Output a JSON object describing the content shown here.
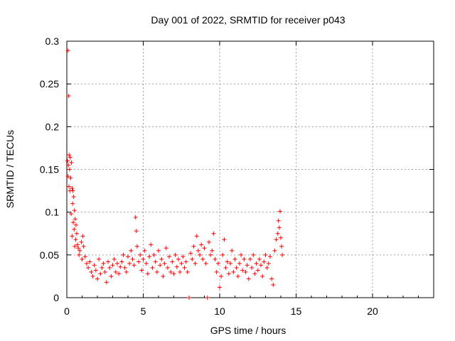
{
  "chart_data": {
    "type": "scatter",
    "title": "Day 001 of 2022, SRMTID for receiver p043",
    "xlabel": "GPS time / hours",
    "ylabel": "SRMTID / TECUs",
    "xlim": [
      0,
      24
    ],
    "ylim": [
      0,
      0.3
    ],
    "xticks": [
      0,
      5,
      10,
      15,
      20
    ],
    "yticks": [
      0,
      0.05,
      0.1,
      0.15,
      0.2,
      0.25,
      0.3
    ],
    "ytick_labels": [
      "0",
      "0.05",
      "0.1",
      "0.15",
      "0.2",
      "0.25",
      "0.3"
    ],
    "grid": true,
    "marker": "+",
    "color": "#ff0000",
    "series": [
      {
        "name": "SRMTID",
        "points": [
          [
            0.08,
            0.289
          ],
          [
            0.12,
            0.236
          ],
          [
            0.05,
            0.16
          ],
          [
            0.15,
            0.167
          ],
          [
            0.22,
            0.164
          ],
          [
            0.1,
            0.155
          ],
          [
            0.18,
            0.15
          ],
          [
            0.3,
            0.158
          ],
          [
            0.25,
            0.14
          ],
          [
            0.08,
            0.142
          ],
          [
            0.14,
            0.13
          ],
          [
            0.35,
            0.128
          ],
          [
            0.2,
            0.125
          ],
          [
            0.4,
            0.125
          ],
          [
            0.45,
            0.118
          ],
          [
            0.38,
            0.11
          ],
          [
            0.5,
            0.102
          ],
          [
            0.28,
            0.098
          ],
          [
            0.55,
            0.092
          ],
          [
            0.42,
            0.088
          ],
          [
            0.6,
            0.085
          ],
          [
            0.48,
            0.08
          ],
          [
            0.35,
            0.072
          ],
          [
            0.65,
            0.075
          ],
          [
            0.58,
            0.068
          ],
          [
            0.7,
            0.062
          ],
          [
            0.75,
            0.058
          ],
          [
            0.52,
            0.06
          ],
          [
            0.85,
            0.055
          ],
          [
            0.8,
            0.05
          ],
          [
            0.95,
            0.065
          ],
          [
            1.05,
            0.072
          ],
          [
            1.1,
            0.06
          ],
          [
            1.2,
            0.048
          ],
          [
            1.0,
            0.045
          ],
          [
            1.3,
            0.04
          ],
          [
            1.4,
            0.035
          ],
          [
            1.5,
            0.042
          ],
          [
            1.6,
            0.03
          ],
          [
            1.7,
            0.025
          ],
          [
            1.8,
            0.038
          ],
          [
            1.9,
            0.032
          ],
          [
            2.0,
            0.022
          ],
          [
            2.1,
            0.045
          ],
          [
            2.2,
            0.028
          ],
          [
            2.3,
            0.035
          ],
          [
            2.4,
            0.04
          ],
          [
            2.5,
            0.03
          ],
          [
            2.6,
            0.018
          ],
          [
            2.7,
            0.042
          ],
          [
            2.8,
            0.035
          ],
          [
            2.9,
            0.025
          ],
          [
            3.0,
            0.038
          ],
          [
            3.1,
            0.045
          ],
          [
            3.2,
            0.03
          ],
          [
            3.3,
            0.04
          ],
          [
            3.4,
            0.028
          ],
          [
            3.5,
            0.036
          ],
          [
            3.6,
            0.042
          ],
          [
            3.7,
            0.05
          ],
          [
            3.8,
            0.035
          ],
          [
            3.9,
            0.03
          ],
          [
            4.0,
            0.048
          ],
          [
            4.1,
            0.04
          ],
          [
            4.2,
            0.055
          ],
          [
            4.3,
            0.045
          ],
          [
            4.4,
            0.038
          ],
          [
            4.5,
            0.094
          ],
          [
            4.55,
            0.078
          ],
          [
            4.6,
            0.06
          ],
          [
            4.7,
            0.042
          ],
          [
            4.8,
            0.05
          ],
          [
            4.9,
            0.032
          ],
          [
            5.0,
            0.045
          ],
          [
            5.1,
            0.055
          ],
          [
            5.2,
            0.04
          ],
          [
            5.3,
            0.028
          ],
          [
            5.4,
            0.048
          ],
          [
            5.5,
            0.062
          ],
          [
            5.6,
            0.035
          ],
          [
            5.7,
            0.05
          ],
          [
            5.8,
            0.042
          ],
          [
            5.9,
            0.03
          ],
          [
            6.0,
            0.055
          ],
          [
            6.1,
            0.038
          ],
          [
            6.2,
            0.045
          ],
          [
            6.3,
            0.025
          ],
          [
            6.4,
            0.04
          ],
          [
            6.5,
            0.058
          ],
          [
            6.6,
            0.035
          ],
          [
            6.7,
            0.048
          ],
          [
            6.8,
            0.03
          ],
          [
            6.9,
            0.042
          ],
          [
            7.0,
            0.028
          ],
          [
            7.1,
            0.05
          ],
          [
            7.2,
            0.036
          ],
          [
            7.3,
            0.045
          ],
          [
            7.4,
            0.03
          ],
          [
            7.5,
            0.04
          ],
          [
            7.6,
            0.048
          ],
          [
            7.7,
            0.035
          ],
          [
            7.8,
            0.042
          ],
          [
            7.9,
            0.03
          ],
          [
            8.0,
            0.0
          ],
          [
            8.1,
            0.052
          ],
          [
            8.2,
            0.045
          ],
          [
            8.3,
            0.06
          ],
          [
            8.4,
            0.04
          ],
          [
            8.5,
            0.072
          ],
          [
            8.6,
            0.055
          ],
          [
            8.7,
            0.05
          ],
          [
            8.8,
            0.062
          ],
          [
            8.9,
            0.045
          ],
          [
            9.0,
            0.058
          ],
          [
            9.1,
            0.04
          ],
          [
            9.2,
            0.0
          ],
          [
            9.3,
            0.065
          ],
          [
            9.4,
            0.05
          ],
          [
            9.5,
            0.055
          ],
          [
            9.6,
            0.075
          ],
          [
            9.7,
            0.045
          ],
          [
            9.8,
            0.03
          ],
          [
            9.9,
            0.04
          ],
          [
            10.0,
            0.012
          ],
          [
            10.1,
            0.025
          ],
          [
            10.2,
            0.05
          ],
          [
            10.3,
            0.068
          ],
          [
            10.4,
            0.035
          ],
          [
            10.5,
            0.042
          ],
          [
            10.6,
            0.028
          ],
          [
            10.7,
            0.04
          ],
          [
            10.8,
            0.055
          ],
          [
            10.9,
            0.03
          ],
          [
            11.0,
            0.045
          ],
          [
            11.1,
            0.035
          ],
          [
            11.2,
            0.025
          ],
          [
            11.3,
            0.04
          ],
          [
            11.4,
            0.05
          ],
          [
            11.5,
            0.032
          ],
          [
            11.6,
            0.045
          ],
          [
            11.7,
            0.03
          ],
          [
            11.8,
            0.038
          ],
          [
            11.9,
            0.022
          ],
          [
            12.0,
            0.045
          ],
          [
            12.1,
            0.035
          ],
          [
            12.2,
            0.05
          ],
          [
            12.3,
            0.028
          ],
          [
            12.4,
            0.04
          ],
          [
            12.5,
            0.032
          ],
          [
            12.6,
            0.045
          ],
          [
            12.7,
            0.038
          ],
          [
            12.8,
            0.025
          ],
          [
            12.9,
            0.042
          ],
          [
            13.0,
            0.05
          ],
          [
            13.1,
            0.035
          ],
          [
            13.2,
            0.04
          ],
          [
            13.3,
            0.048
          ],
          [
            13.4,
            0.022
          ],
          [
            13.5,
            0.015
          ],
          [
            13.6,
            0.055
          ],
          [
            13.7,
            0.068
          ],
          [
            13.8,
            0.075
          ],
          [
            13.85,
            0.09
          ],
          [
            13.9,
            0.082
          ],
          [
            13.95,
            0.101
          ],
          [
            14.0,
            0.07
          ],
          [
            14.05,
            0.06
          ],
          [
            14.1,
            0.05
          ]
        ]
      }
    ]
  }
}
